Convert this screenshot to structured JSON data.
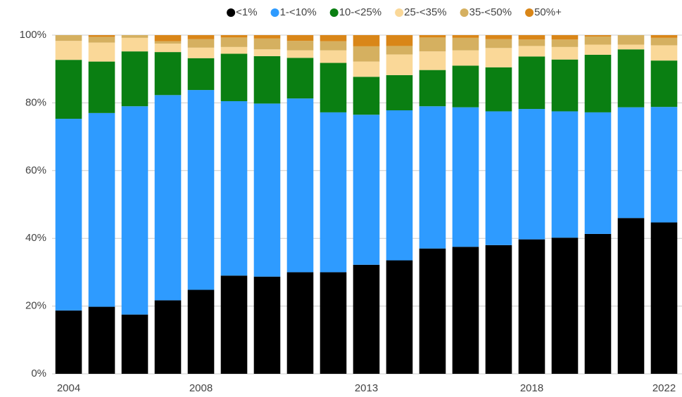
{
  "chart_data": {
    "type": "stacked_bar",
    "categories": [
      "2004",
      null,
      null,
      null,
      "2008",
      null,
      null,
      null,
      null,
      "2013",
      null,
      null,
      null,
      null,
      "2018",
      null,
      null,
      null,
      "2022"
    ],
    "series": [
      {
        "name": "<1%",
        "color": "#000000",
        "values": [
          18.7,
          19.8,
          17.5,
          21.7,
          24.8,
          29.0,
          28.7,
          30.0,
          30.0,
          32.2,
          33.5,
          37.0,
          37.5,
          38.0,
          39.7,
          40.2,
          41.3,
          46.0,
          44.7
        ]
      },
      {
        "name": "1-<10%",
        "color": "#2e9bff",
        "values": [
          56.6,
          57.2,
          61.5,
          60.6,
          59.0,
          51.5,
          51.1,
          51.3,
          47.2,
          44.3,
          44.3,
          42.0,
          41.2,
          39.5,
          38.5,
          37.3,
          35.9,
          32.7,
          34.1
        ]
      },
      {
        "name": "10-<25%",
        "color": "#0a7f12",
        "values": [
          17.4,
          15.2,
          16.2,
          12.7,
          9.4,
          14.0,
          14.0,
          12.0,
          14.6,
          11.2,
          10.4,
          10.7,
          12.3,
          13.0,
          15.5,
          15.3,
          17.0,
          17.1,
          13.7
        ]
      },
      {
        "name": "25-<35%",
        "color": "#fad898",
        "values": [
          5.6,
          5.6,
          4.0,
          2.5,
          3.1,
          2.0,
          2.0,
          2.2,
          3.7,
          4.5,
          6.1,
          5.5,
          4.5,
          5.7,
          3.1,
          3.7,
          3.0,
          1.4,
          4.5
        ]
      },
      {
        "name": "35-<50%",
        "color": "#d5b060",
        "values": [
          1.7,
          1.7,
          0.8,
          0.7,
          2.5,
          2.8,
          3.2,
          2.8,
          2.7,
          4.5,
          2.5,
          4.1,
          3.7,
          2.6,
          1.9,
          2.2,
          2.4,
          2.8,
          2.2
        ]
      },
      {
        "name": "50%+",
        "color": "#d98618",
        "values": [
          0,
          0.5,
          0,
          1.8,
          1.2,
          0.7,
          1.0,
          1.7,
          1.8,
          3.3,
          3.2,
          0.7,
          0.8,
          1.2,
          1.3,
          1.3,
          0.4,
          0,
          0.8
        ]
      }
    ],
    "ylim": [
      0,
      100
    ],
    "yticks": [
      {
        "value": 0,
        "label": "0%"
      },
      {
        "value": 20,
        "label": "20%"
      },
      {
        "value": 40,
        "label": "40%"
      },
      {
        "value": 60,
        "label": "60%"
      },
      {
        "value": 80,
        "label": "80%"
      },
      {
        "value": 100,
        "label": "100%"
      }
    ],
    "grid": true,
    "legend": "top"
  }
}
